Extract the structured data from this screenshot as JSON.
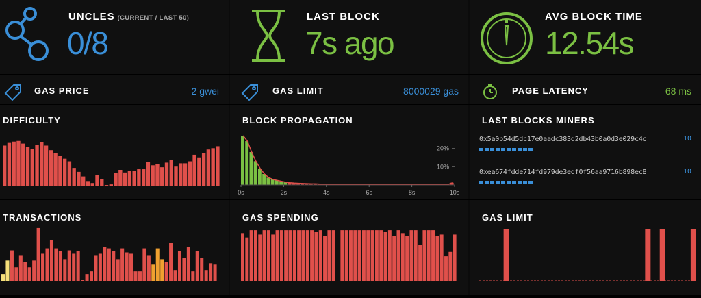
{
  "colors": {
    "red": "#e0504b",
    "green": "#7bc043",
    "blue": "#3a8fd8",
    "orange": "#f0a030",
    "yellow": "#f5e07a"
  },
  "stats": {
    "uncles": {
      "title": "UNCLES",
      "subtitle": "(CURRENT / LAST 50)",
      "value": "0/8",
      "icon": "uncles-graph-icon"
    },
    "last_block": {
      "title": "LAST BLOCK",
      "value": "7s ago",
      "icon": "hourglass-icon"
    },
    "avg_block_time": {
      "title": "AVG BLOCK TIME",
      "value": "12.54s",
      "icon": "gauge-icon"
    }
  },
  "info": {
    "gas_price": {
      "label": "GAS PRICE",
      "value": "2 gwei",
      "icon": "tag-icon"
    },
    "gas_limit": {
      "label": "GAS LIMIT",
      "value": "8000029 gas",
      "icon": "tag-icon"
    },
    "page_latency": {
      "label": "PAGE LATENCY",
      "value": "68 ms",
      "icon": "stopwatch-icon"
    }
  },
  "panels": {
    "difficulty": "DIFFICULTY",
    "block_propagation": "BLOCK PROPAGATION",
    "last_blocks_miners": "LAST BLOCKS MINERS",
    "transactions": "TRANSACTIONS",
    "gas_spending": "GAS SPENDING",
    "gas_limit": "GAS LIMIT"
  },
  "miners": [
    {
      "address": "0x5a0b54d5dc17e0aadc383d2db43b0a0d3e029c4c",
      "count": "10",
      "blocks": 10
    },
    {
      "address": "0xea674fdde714fd979de3edf0f56aa9716b898ec8",
      "count": "10",
      "blocks": 10
    }
  ],
  "chart_data": [
    {
      "type": "bar",
      "name_key": "difficulty",
      "values": [
        62,
        66,
        68,
        69,
        65,
        60,
        57,
        63,
        67,
        62,
        55,
        51,
        46,
        42,
        38,
        28,
        22,
        15,
        8,
        5,
        17,
        11,
        2,
        3,
        20,
        25,
        21,
        23,
        23,
        26,
        26,
        37,
        32,
        34,
        29,
        36,
        40,
        30,
        35,
        35,
        38,
        48,
        44,
        51,
        56,
        58,
        61
      ],
      "ylim": [
        0,
        75
      ]
    },
    {
      "type": "bar",
      "name_key": "block_propagation",
      "x_ticks": [
        "0s",
        "2s",
        "4s",
        "6s",
        "8s",
        "10s"
      ],
      "y_ticks": [
        "20%",
        "10%"
      ],
      "values": [
        27,
        24,
        18,
        13,
        9,
        6,
        4,
        3,
        2.5,
        2,
        1.5,
        1.2,
        1,
        0.9,
        0.8,
        0.7,
        0.6,
        0.6,
        0.5,
        0.5,
        0.4,
        0.4,
        0.4,
        0.35,
        0.3,
        0.3,
        0.3,
        0.3,
        0.3,
        0.3,
        0.3,
        0.3,
        0.3,
        0.3,
        0.3,
        0.3,
        0.3,
        0.3,
        0.3,
        0.3,
        0.3,
        0.3,
        0.3,
        0.3,
        0.3,
        0.3,
        0.3,
        0.3,
        0.3,
        1.2
      ],
      "green_count": 11,
      "ylim": [
        0,
        30
      ]
    },
    {
      "type": "bar",
      "name_key": "transactions",
      "values": [
        10,
        30,
        45,
        20,
        38,
        28,
        20,
        30,
        78,
        40,
        48,
        60,
        48,
        44,
        32,
        45,
        40,
        44,
        2,
        10,
        14,
        38,
        40,
        50,
        48,
        44,
        32,
        48,
        42,
        40,
        14,
        14,
        48,
        38,
        24,
        48,
        32,
        28,
        56,
        16,
        44,
        34,
        50,
        14,
        44,
        34,
        16,
        26,
        24
      ],
      "yellow_index": [
        0,
        1
      ],
      "orange_index": [
        34,
        35,
        36
      ],
      "ylim": [
        0,
        85
      ]
    },
    {
      "type": "bar",
      "name_key": "gas_spending",
      "values": [
        66,
        60,
        70,
        70,
        64,
        70,
        70,
        64,
        70,
        70,
        70,
        70,
        70,
        70,
        70,
        70,
        70,
        68,
        70,
        62,
        70,
        70,
        0,
        70,
        70,
        70,
        70,
        70,
        70,
        70,
        70,
        70,
        70,
        68,
        70,
        62,
        70,
        66,
        62,
        70,
        70,
        50,
        70,
        70,
        70,
        62,
        64,
        34,
        40,
        64
      ],
      "ylim": [
        0,
        72
      ]
    },
    {
      "type": "bar",
      "name_key": "gas_limit",
      "values": [
        0,
        0,
        0,
        0,
        0,
        0,
        0,
        0,
        0,
        0,
        0,
        0,
        0,
        0,
        0,
        100,
        0,
        0,
        0,
        0,
        0,
        0,
        0,
        0,
        0,
        0,
        0,
        0,
        0,
        0,
        0,
        0,
        0,
        0,
        0,
        0,
        0,
        0,
        0,
        0,
        0,
        0,
        0,
        0,
        0,
        0,
        0,
        0,
        0,
        0,
        0,
        0,
        0,
        0,
        0,
        0,
        0,
        0,
        0,
        0,
        0,
        0,
        0,
        0,
        0,
        0,
        0,
        0,
        0,
        0,
        0,
        0,
        0,
        0,
        0,
        0,
        0,
        0,
        0,
        0,
        0,
        0,
        0,
        0,
        0,
        0,
        0,
        0,
        0,
        0,
        0,
        0,
        0,
        0,
        0,
        0,
        0,
        0,
        0,
        0,
        0,
        0,
        100,
        0,
        0,
        0,
        0,
        0,
        0,
        0,
        0,
        100,
        0,
        0,
        0,
        0,
        0,
        0,
        0,
        0,
        0,
        0,
        0,
        0,
        0,
        0,
        0,
        0,
        0,
        0,
        100,
        0,
        0
      ],
      "ylim": [
        0,
        100
      ]
    }
  ]
}
